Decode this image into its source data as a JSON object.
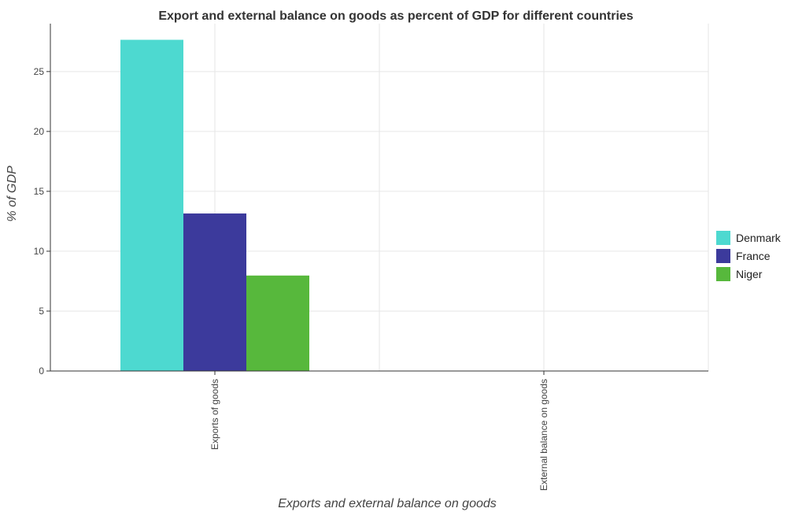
{
  "chart_data": {
    "type": "bar",
    "title": "Export and external balance on goods as percent of GDP for different countries",
    "xlabel": "Exports and external balance on goods",
    "ylabel": "% of GDP",
    "categories": [
      "Exports of goods",
      "External balance on goods"
    ],
    "series": [
      {
        "name": "Denmark",
        "color": "#4dd9d0",
        "values": [
          27.65,
          0
        ]
      },
      {
        "name": "France",
        "color": "#3c3a9c",
        "values": [
          13.15,
          0
        ]
      },
      {
        "name": "Niger",
        "color": "#57b83c",
        "values": [
          7.97,
          0
        ]
      }
    ],
    "ylim": [
      0,
      29
    ],
    "yticks": [
      0,
      5,
      10,
      15,
      20,
      25
    ],
    "grid": true,
    "legend": "right"
  }
}
